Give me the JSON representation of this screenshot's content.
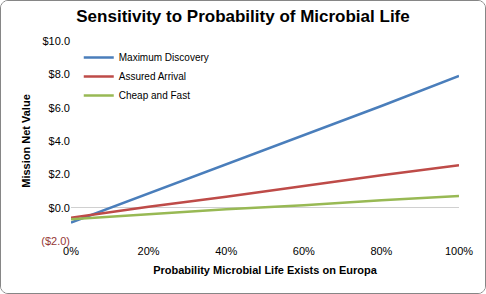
{
  "chart_data": {
    "type": "line",
    "title": "Sensitivity to Probability of Microbial Life",
    "x_label": "Probability Microbial Life Exists on Europa",
    "y_label": "Mission Net Value",
    "x": [
      0,
      20,
      40,
      60,
      80,
      100
    ],
    "series": [
      {
        "name": "Maximum Discovery",
        "color": "#4a7ebb",
        "values": [
          -0.9,
          0.85,
          2.6,
          4.35,
          6.1,
          7.9
        ]
      },
      {
        "name": "Assured Arrival",
        "color": "#be4b48",
        "values": [
          -0.6,
          0.05,
          0.65,
          1.3,
          1.95,
          2.55
        ]
      },
      {
        "name": "Cheap and Fast",
        "color": "#98b954",
        "values": [
          -0.7,
          -0.4,
          -0.1,
          0.15,
          0.45,
          0.7
        ]
      }
    ],
    "xlim": [
      0,
      100
    ],
    "xticks": [
      {
        "value": 0,
        "label": "0%"
      },
      {
        "value": 20,
        "label": "20%"
      },
      {
        "value": 40,
        "label": "40%"
      },
      {
        "value": 60,
        "label": "60%"
      },
      {
        "value": 80,
        "label": "80%"
      },
      {
        "value": 100,
        "label": "100%"
      }
    ],
    "ylim": [
      -2,
      10
    ],
    "yticks": [
      {
        "value": -2,
        "label": "($2.0)"
      },
      {
        "value": 0,
        "label": "$0.0"
      },
      {
        "value": 2,
        "label": "$2.0"
      },
      {
        "value": 4,
        "label": "$4.0"
      },
      {
        "value": 6,
        "label": "$6.0"
      },
      {
        "value": 8,
        "label": "$8.0"
      },
      {
        "value": 10,
        "label": "$10.0"
      }
    ],
    "grid": false,
    "legend": "upper left"
  }
}
